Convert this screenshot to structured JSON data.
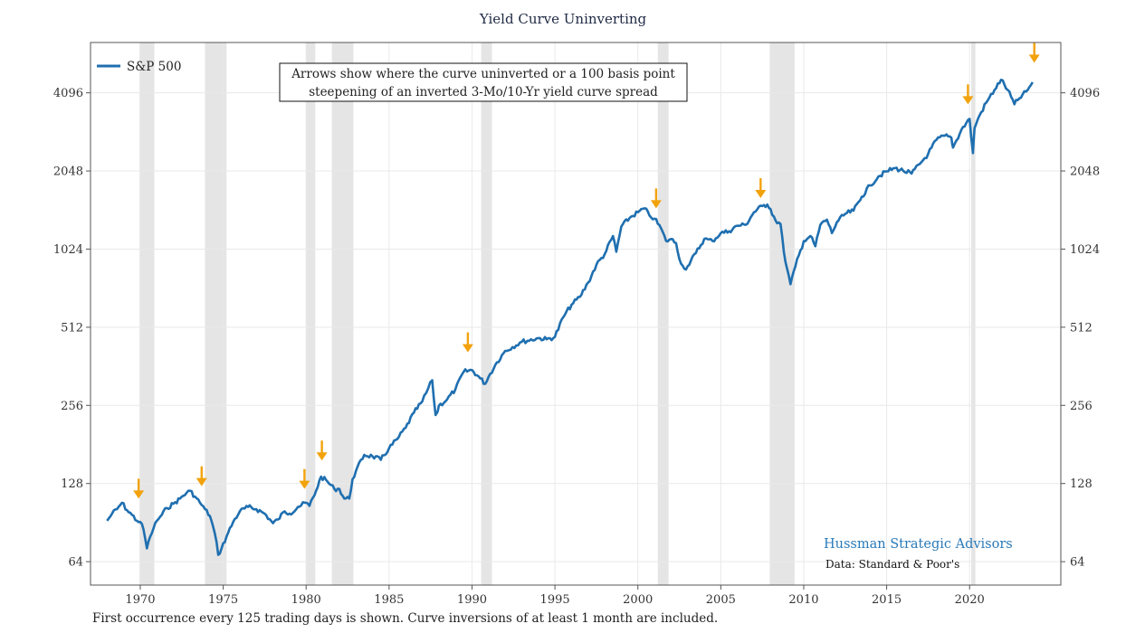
{
  "title": "Yield Curve Uninverting",
  "footnote": "First occurrence every 125 trading days is shown. Curve inversions of at least 1 month are included.",
  "annotation": {
    "line1": "Arrows show where the curve uninverted or a 100 basis point",
    "line2": "steepening of an inverted 3-Mo/10-Yr yield curve spread"
  },
  "brand": "Hussman Strategic Advisors",
  "source": "Data: Standard & Poor's",
  "colors": {
    "series": "#1f6fb0",
    "arrow": "#f2a20c",
    "shade": "#e5e5e5",
    "grid": "#e9e9e9",
    "brand": "#2a7ab8"
  },
  "chart_data": {
    "type": "line",
    "title": "Yield Curve Uninverting",
    "xlabel": "",
    "ylabel": "",
    "yscale": "log2",
    "xlim": [
      1967.0,
      2025.5
    ],
    "ylim": [
      52,
      6400
    ],
    "x_ticks": [
      1970,
      1975,
      1980,
      1985,
      1990,
      1995,
      2000,
      2005,
      2010,
      2015,
      2020
    ],
    "y_ticks": [
      64,
      128,
      256,
      512,
      1024,
      2048,
      4096
    ],
    "y_tick_labels": [
      "64",
      "128",
      "256",
      "512",
      "1024",
      "2048",
      "4096"
    ],
    "grid": true,
    "legend_position": "top-left",
    "series": [
      {
        "name": "S&P 500",
        "x": [
          1968.0,
          1968.3,
          1968.6,
          1968.9,
          1969.2,
          1969.5,
          1969.8,
          1970.0,
          1970.2,
          1970.4,
          1970.6,
          1970.8,
          1971.0,
          1971.3,
          1971.6,
          1972.0,
          1972.4,
          1972.8,
          1973.0,
          1973.3,
          1973.6,
          1973.9,
          1974.2,
          1974.5,
          1974.7,
          1974.9,
          1975.2,
          1975.6,
          1976.0,
          1976.5,
          1977.0,
          1977.5,
          1978.0,
          1978.3,
          1978.7,
          1979.0,
          1979.5,
          1980.0,
          1980.2,
          1980.6,
          1980.9,
          1981.3,
          1981.7,
          1982.0,
          1982.3,
          1982.6,
          1982.8,
          1983.0,
          1983.5,
          1984.0,
          1984.5,
          1985.0,
          1985.5,
          1986.0,
          1986.5,
          1987.0,
          1987.6,
          1987.8,
          1987.9,
          1988.0,
          1988.5,
          1989.0,
          1989.5,
          1990.0,
          1990.5,
          1990.8,
          1991.0,
          1991.5,
          1992.0,
          1993.0,
          1994.0,
          1994.5,
          1995.0,
          1995.5,
          1996.0,
          1996.5,
          1997.0,
          1997.5,
          1998.0,
          1998.5,
          1998.7,
          1999.0,
          1999.5,
          2000.0,
          2000.4,
          2000.7,
          2001.0,
          2001.4,
          2001.7,
          2002.0,
          2002.3,
          2002.6,
          2002.8,
          2003.0,
          2003.5,
          2004.0,
          2004.5,
          2005.0,
          2005.5,
          2006.0,
          2006.5,
          2007.0,
          2007.5,
          2007.8,
          2008.0,
          2008.3,
          2008.6,
          2008.8,
          2009.0,
          2009.2,
          2009.5,
          2010.0,
          2010.4,
          2010.7,
          2011.0,
          2011.4,
          2011.7,
          2012.0,
          2012.5,
          2013.0,
          2013.5,
          2014.0,
          2014.5,
          2015.0,
          2015.5,
          2016.0,
          2016.5,
          2017.0,
          2017.5,
          2018.0,
          2018.5,
          2018.9,
          2019.0,
          2019.5,
          2020.0,
          2020.2,
          2020.3,
          2020.5,
          2021.0,
          2021.5,
          2021.9,
          2022.3,
          2022.7,
          2023.0,
          2023.5,
          2023.8
        ],
        "y": [
          92,
          98,
          102,
          108,
          101,
          97,
          92,
          91,
          85,
          72,
          80,
          86,
          92,
          97,
          103,
          107,
          112,
          118,
          120,
          114,
          108,
          102,
          96,
          82,
          68,
          72,
          80,
          91,
          100,
          104,
          102,
          98,
          90,
          93,
          100,
          98,
          104,
          108,
          105,
          120,
          136,
          130,
          122,
          122,
          112,
          112,
          133,
          143,
          165,
          163,
          158,
          175,
          190,
          210,
          240,
          265,
          320,
          235,
          240,
          255,
          270,
          295,
          345,
          350,
          325,
          310,
          330,
          375,
          415,
          450,
          465,
          460,
          470,
          560,
          625,
          670,
          760,
          890,
          980,
          1150,
          1000,
          1250,
          1350,
          1420,
          1470,
          1380,
          1340,
          1230,
          1100,
          1120,
          1080,
          900,
          860,
          880,
          990,
          1120,
          1100,
          1180,
          1200,
          1260,
          1270,
          1420,
          1500,
          1520,
          1460,
          1320,
          1280,
          1000,
          860,
          750,
          880,
          1100,
          1150,
          1050,
          1270,
          1330,
          1180,
          1300,
          1400,
          1440,
          1630,
          1800,
          1950,
          2040,
          2100,
          2050,
          2000,
          2180,
          2380,
          2700,
          2800,
          2750,
          2520,
          2950,
          3250,
          2400,
          3000,
          3250,
          3750,
          4200,
          4600,
          4200,
          3700,
          3900,
          4200,
          4500
        ]
      }
    ],
    "recession_shading": [
      [
        1969.95,
        1970.85
      ],
      [
        1973.9,
        1975.2
      ],
      [
        1980.0,
        1980.55
      ],
      [
        1981.55,
        1982.85
      ],
      [
        1990.55,
        1991.2
      ],
      [
        2001.2,
        2001.85
      ],
      [
        2007.95,
        2009.45
      ],
      [
        2020.1,
        2020.35
      ]
    ],
    "arrows": [
      {
        "x": 1969.9,
        "y": 112
      },
      {
        "x": 1973.7,
        "y": 125
      },
      {
        "x": 1979.9,
        "y": 122
      },
      {
        "x": 1980.95,
        "y": 157
      },
      {
        "x": 1989.75,
        "y": 410
      },
      {
        "x": 2001.1,
        "y": 1470
      },
      {
        "x": 2007.4,
        "y": 1610
      },
      {
        "x": 2019.9,
        "y": 3700
      },
      {
        "x": 2023.9,
        "y": 5350
      }
    ]
  }
}
